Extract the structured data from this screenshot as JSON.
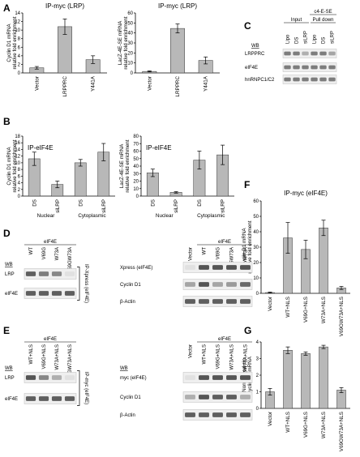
{
  "panels": {
    "A": "A",
    "B": "B",
    "C": "C",
    "D": "D",
    "E": "E",
    "F": "F",
    "G": "G"
  },
  "chart_data": [
    {
      "id": "A1",
      "type": "bar",
      "title": "IP-myc (LRP)",
      "ylabel": [
        "Cyclin D1 mRNA",
        "relative fold enrichment"
      ],
      "categories": [
        "Vector",
        "LRPPRC",
        "Y441A"
      ],
      "values": [
        1.2,
        10.8,
        3.1
      ],
      "errors": [
        0.3,
        1.8,
        0.9
      ],
      "ylim": [
        0,
        14
      ],
      "yticks": [
        0,
        2,
        4,
        6,
        8,
        10,
        12,
        14
      ],
      "group_labels": []
    },
    {
      "id": "A2",
      "type": "bar",
      "title": "IP-myc (LRP)",
      "ylabel": [
        "LacZ-4E-SE mRNA",
        "relative fold enrichment"
      ],
      "categories": [
        "Vector",
        "LRPPRC",
        "Y441A"
      ],
      "values": [
        1.5,
        44.5,
        12.5
      ],
      "errors": [
        0.5,
        4.5,
        3.5
      ],
      "ylim": [
        0,
        60
      ],
      "yticks": [
        0,
        10,
        20,
        30,
        40,
        50,
        60
      ],
      "group_labels": []
    },
    {
      "id": "B1",
      "type": "bar",
      "title": "IP-eIF4E",
      "ylabel": [
        "Cyclin D1 mRNA",
        "relative fold enrichment"
      ],
      "categories": [
        "DS",
        "siLRP",
        "DS",
        "siLRP"
      ],
      "values": [
        11.2,
        3.5,
        10.0,
        13.2
      ],
      "errors": [
        2.0,
        1.0,
        1.0,
        2.6
      ],
      "ylim": [
        0,
        18
      ],
      "yticks": [
        0,
        2,
        4,
        6,
        8,
        10,
        12,
        14,
        16,
        18
      ],
      "group_labels": [
        "Nuclear",
        "Cytoplasmic"
      ]
    },
    {
      "id": "B2",
      "type": "bar",
      "title": "IP-eIF4E",
      "ylabel": [
        "LacZ-4E-SE mRNA",
        "relative fold enrichment"
      ],
      "categories": [
        "DS",
        "siLRP",
        "DS",
        "siLRP"
      ],
      "values": [
        31,
        5,
        48,
        55
      ],
      "errors": [
        5,
        1,
        12,
        13
      ],
      "ylim": [
        0,
        80
      ],
      "yticks": [
        0,
        10,
        20,
        30,
        40,
        50,
        60,
        70,
        80
      ],
      "group_labels": [
        "Nuclear",
        "Cytoplasmic"
      ]
    },
    {
      "id": "F",
      "type": "bar",
      "title": "IP-myc (eIF4E)",
      "ylabel": [
        "Cyclin D1 mRNA",
        "relative fold enrichment"
      ],
      "categories": [
        "Vector",
        "WT+NLS",
        "V69G+NLS",
        "W73A+NLS",
        "V69GW73A+NLS"
      ],
      "values": [
        0.5,
        36,
        28.5,
        42.5,
        3.5
      ],
      "errors": [
        0.3,
        10,
        6,
        5,
        1
      ],
      "ylim": [
        0,
        60
      ],
      "yticks": [
        0,
        10,
        20,
        30,
        40,
        50,
        60
      ],
      "group_labels": []
    },
    {
      "id": "G",
      "type": "bar",
      "title": "",
      "ylabel": [
        "Normalized cin",
        "cyclin D1 mRNA"
      ],
      "categories": [
        "Vector",
        "WT+NLS",
        "V69G+NLS",
        "W73A+NLS",
        "V69GW73A+NLS"
      ],
      "values": [
        1.0,
        3.5,
        3.3,
        3.7,
        1.1
      ],
      "errors": [
        0.2,
        0.2,
        0.1,
        0.1,
        0.15
      ],
      "ylim": [
        0,
        4
      ],
      "yticks": [
        0,
        1,
        2,
        3,
        4
      ],
      "group_labels": []
    }
  ],
  "blots": {
    "C": {
      "header": "c4-E-SE",
      "groups": [
        "Input",
        "Pull down"
      ],
      "lanes": [
        "Lipo",
        "DS",
        "siLRP",
        "Lipo",
        "DS",
        "siLRP"
      ],
      "wb": "WB",
      "rows": [
        {
          "label": "LRPPRC",
          "intensity": [
            0.55,
            0.55,
            0.3,
            0.55,
            0.55,
            0.35
          ]
        },
        {
          "label": "eIF4E",
          "intensity": [
            0.55,
            0.55,
            0.55,
            0.55,
            0.55,
            0.55
          ]
        },
        {
          "label": "hnRNPC1/C2",
          "intensity": [
            0.55,
            0.55,
            0.55,
            0.55,
            0.55,
            0.55
          ]
        }
      ]
    },
    "D_left": {
      "header": "eIF4E",
      "wb": "WB",
      "lanes": [
        "WT",
        "V69G",
        "W73A",
        "V69GW73A"
      ],
      "bracket": "IP-Xpress (eIF4E)",
      "rows": [
        {
          "label": "LRP",
          "intensity": [
            0.7,
            0.55,
            0.5,
            0.05
          ]
        },
        {
          "label": "eIF4E",
          "intensity": [
            0.7,
            0.7,
            0.7,
            0.7
          ]
        }
      ]
    },
    "D_right": {
      "header": "eIF4E",
      "lanes": [
        "Vector",
        "WT",
        "V69G",
        "V69GW73A",
        "W73A"
      ],
      "rows": [
        {
          "label": "Xpress (eIF4E)",
          "intensity": [
            0.05,
            0.75,
            0.75,
            0.75,
            0.75
          ]
        },
        {
          "label": "Cyclin D1",
          "intensity": [
            0.35,
            0.75,
            0.35,
            0.4,
            0.65
          ]
        },
        {
          "label": "β-Actin",
          "intensity": [
            0.7,
            0.7,
            0.7,
            0.7,
            0.7
          ]
        }
      ]
    },
    "E_left": {
      "header": "eIF4E",
      "wb": "WB",
      "lanes": [
        "WT+NLS",
        "V69G+NLS",
        "W73A+NLS",
        "V69GW73A+NLS"
      ],
      "bracket": "IP-myc (eIF4E)",
      "rows": [
        {
          "label": "LRP",
          "intensity": [
            0.75,
            0.5,
            0.3,
            0.05
          ]
        },
        {
          "label": "eIF4E",
          "intensity": [
            0.7,
            0.7,
            0.7,
            0.7
          ]
        }
      ]
    },
    "E_right": {
      "header": "eIF4E",
      "wb": "WB",
      "lanes": [
        "Vector",
        "WT+NLS",
        "V69G+NLS",
        "W73A+NLS",
        "V69GW73A+NLS"
      ],
      "rows": [
        {
          "label": "myc (eIF4E)",
          "intensity": [
            0.05,
            0.75,
            0.75,
            0.75,
            0.75
          ]
        },
        {
          "label": "Cyclin D1",
          "intensity": [
            0.3,
            0.75,
            0.7,
            0.7,
            0.3
          ]
        },
        {
          "label": "β-Actin",
          "intensity": [
            0.7,
            0.7,
            0.7,
            0.7,
            0.7
          ]
        }
      ]
    }
  }
}
